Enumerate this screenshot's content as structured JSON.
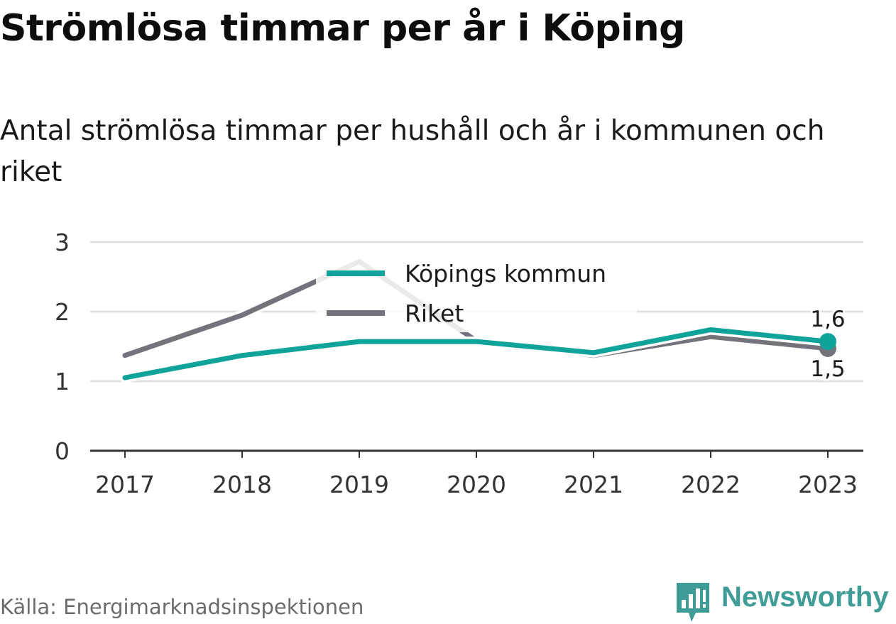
{
  "title": "Strömlösa timmar per år i Köping",
  "subtitle": "Antal strömlösa timmar per hushåll och år i kommunen och riket",
  "source": "Källa: Energimarknadsinspektionen",
  "brand": {
    "name": "Newsworthy",
    "icon": "newsworthy-logo-icon"
  },
  "colors": {
    "kommun": "#0fa39a",
    "riket": "#74737b",
    "grid": "#dddddd",
    "axis": "#333333",
    "brand": "#3f9c96"
  },
  "chart_data": {
    "type": "line",
    "x": [
      "2017",
      "2018",
      "2019",
      "2020",
      "2021",
      "2022",
      "2023"
    ],
    "y_ticks": [
      "0",
      "1",
      "2",
      "3"
    ],
    "ylim": [
      0,
      3
    ],
    "grid": true,
    "legend_position": "top-center",
    "series": [
      {
        "name": "Köpings kommun",
        "values": [
          1.05,
          1.37,
          1.57,
          1.57,
          1.41,
          1.74,
          1.57
        ],
        "end_label": "1,6"
      },
      {
        "name": "Riket",
        "values": [
          1.37,
          1.95,
          2.72,
          1.58,
          1.37,
          1.64,
          1.47
        ],
        "end_label": "1,5"
      }
    ]
  }
}
